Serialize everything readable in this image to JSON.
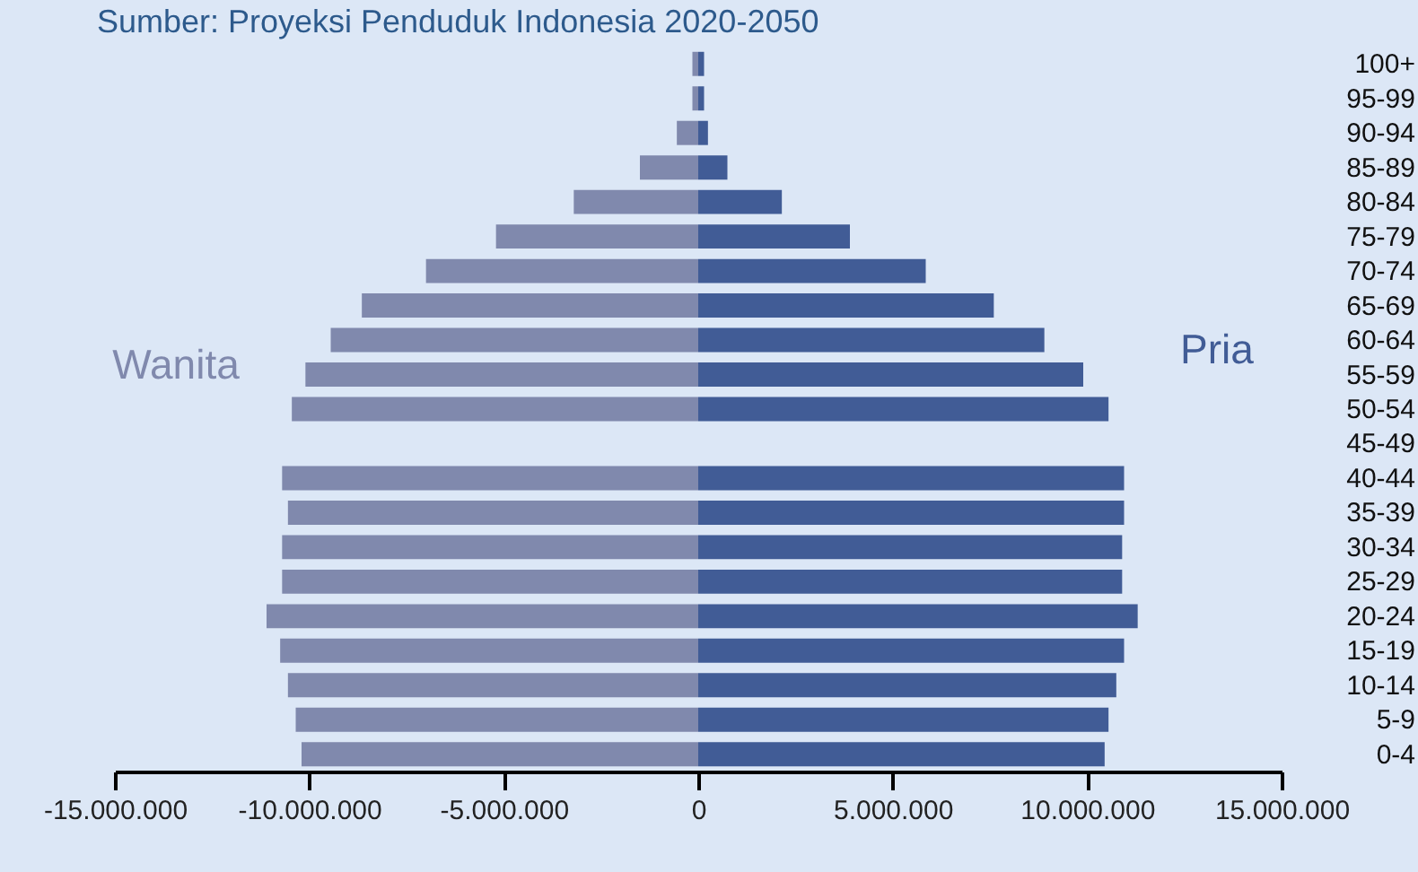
{
  "chart_data": {
    "type": "bar",
    "orientation": "horizontal",
    "stacked": true,
    "title": "Sumber: Proyeksi Penduduk Indonesia 2020-2050",
    "categories": [
      "100+",
      "95-99",
      "90-94",
      "85-89",
      "80-84",
      "75-79",
      "70-74",
      "65-69",
      "60-64",
      "55-59",
      "50-54",
      "45-49",
      "40-44",
      "35-39",
      "30-34",
      "25-29",
      "20-24",
      "15-19",
      "10-14",
      "5-9",
      "0-4"
    ],
    "series": [
      {
        "name": "Wanita",
        "color": "#8089ad",
        "values": [
          -150000,
          -150000,
          -550000,
          -1500000,
          -3200000,
          -5200000,
          -7000000,
          -8650000,
          -9450000,
          -10100000,
          -10450000,
          null,
          -10700000,
          -10550000,
          -10700000,
          -10700000,
          -11100000,
          -10750000,
          -10550000,
          -10350000,
          -10200000
        ]
      },
      {
        "name": "Pria",
        "color": "#415c96",
        "values": [
          150000,
          150000,
          250000,
          750000,
          2150000,
          3900000,
          5850000,
          7600000,
          8900000,
          9900000,
          10550000,
          null,
          10950000,
          10950000,
          10900000,
          10900000,
          11300000,
          10950000,
          10750000,
          10550000,
          10450000
        ]
      }
    ],
    "xlim": [
      -15000000,
      15000000
    ],
    "xticks": [
      {
        "value": -15000000,
        "label": "-15.000.000"
      },
      {
        "value": -10000000,
        "label": "-10.000.000"
      },
      {
        "value": -5000000,
        "label": "-5.000.000"
      },
      0,
      {
        "value": 5000000,
        "label": "5.000.000"
      },
      {
        "value": 10000000,
        "label": "10.000.000"
      },
      {
        "value": 15000000,
        "label": "15.000.000"
      }
    ]
  }
}
